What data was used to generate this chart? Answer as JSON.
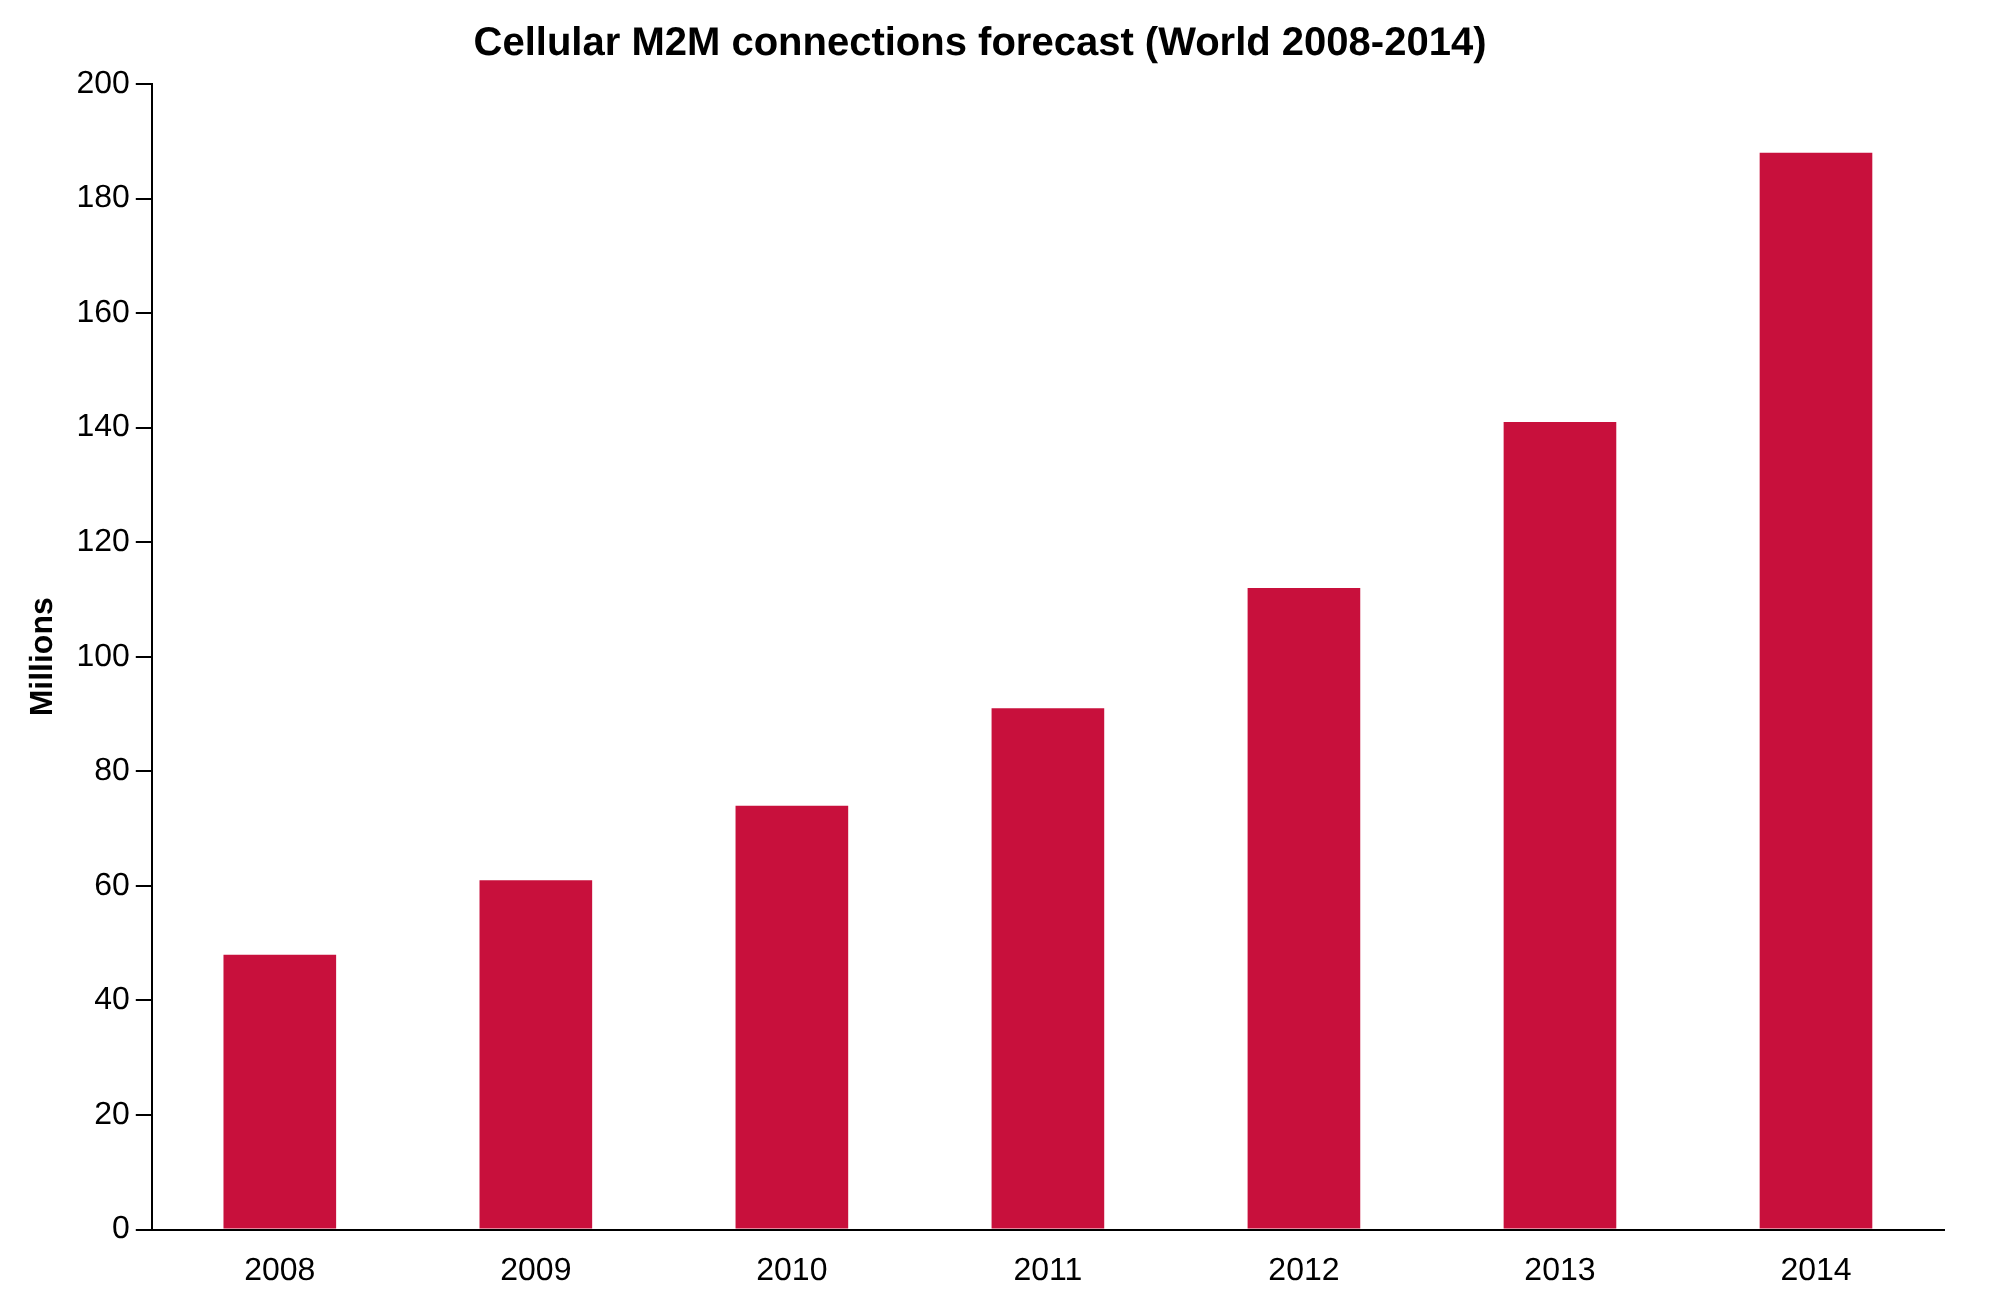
{
  "chart_data": {
    "type": "bar",
    "title": "Cellular M2M connections forecast (World 2008-2014)",
    "ylabel": "Millions",
    "categories": [
      "2008",
      "2009",
      "2010",
      "2011",
      "2012",
      "2013",
      "2014"
    ],
    "values": [
      48,
      61,
      74,
      91,
      112,
      141,
      188
    ],
    "color": "#c8103c",
    "ylim": [
      0,
      200
    ],
    "yticks": [
      0,
      20,
      40,
      60,
      80,
      100,
      120,
      140,
      160,
      180,
      200
    ],
    "grid": false,
    "legend": false
  }
}
